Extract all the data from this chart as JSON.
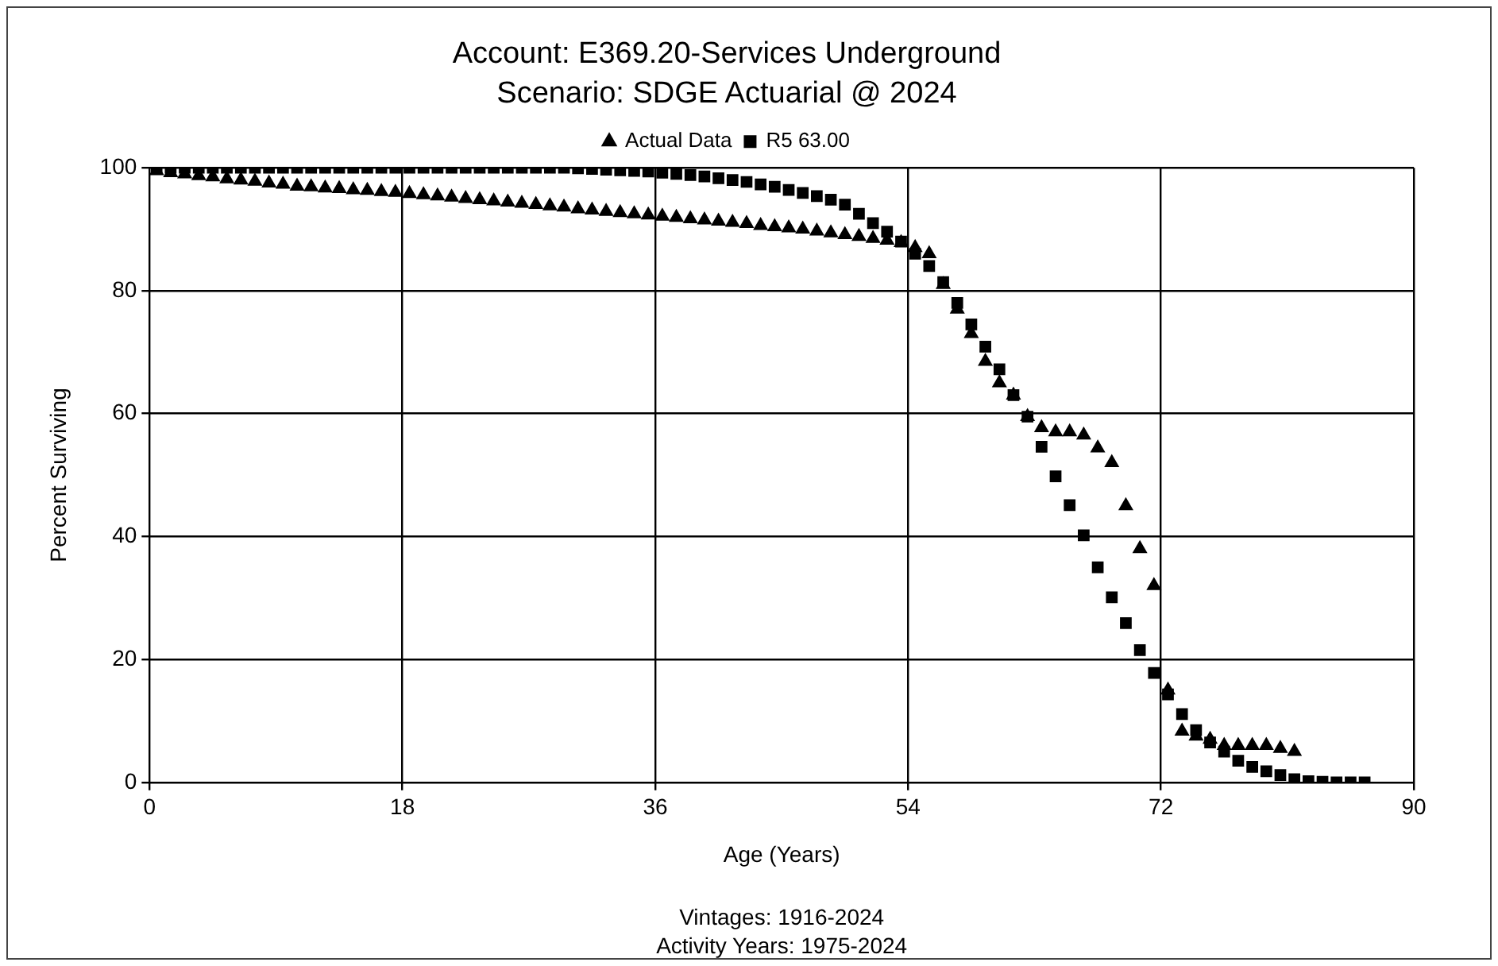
{
  "chart_data": {
    "type": "scatter",
    "title": "Account: E369.20-Services Underground",
    "subtitle": "Scenario: SDGE Actuarial @ 2024",
    "xlabel": "Age (Years)",
    "ylabel": "Percent Surviving",
    "annotations": [
      "Vintages: 1916-2024",
      "Activity Years: 1975-2024"
    ],
    "xlim": [
      0,
      90
    ],
    "xticks": [
      0,
      18,
      36,
      54,
      72,
      90
    ],
    "ylim": [
      0,
      100
    ],
    "yticks": [
      0,
      20,
      40,
      60,
      80,
      100
    ],
    "grid": true,
    "legend": "top",
    "series": [
      {
        "name": "Actual Data",
        "color": "#000000",
        "marker": "triangle",
        "x": [
          0.5,
          1.5,
          2.5,
          3.5,
          4.5,
          5.5,
          6.5,
          7.5,
          8.5,
          9.5,
          10.5,
          11.5,
          12.5,
          13.5,
          14.5,
          15.5,
          16.5,
          17.5,
          18.5,
          19.5,
          20.5,
          21.5,
          22.5,
          23.5,
          24.5,
          25.5,
          26.5,
          27.5,
          28.5,
          29.5,
          30.5,
          31.5,
          32.5,
          33.5,
          34.5,
          35.5,
          36.5,
          37.5,
          38.5,
          39.5,
          40.5,
          41.5,
          42.5,
          43.5,
          44.5,
          45.5,
          46.5,
          47.5,
          48.5,
          49.5,
          50.5,
          51.5,
          52.5,
          53.5,
          54.5,
          55.5,
          56.5,
          57.5,
          58.5,
          59.5,
          60.5,
          61.5,
          62.5,
          63.5,
          64.5,
          65.5,
          66.5,
          67.5,
          68.5,
          69.5,
          70.5,
          71.5,
          72.5,
          73.5,
          74.5,
          75.5,
          76.5,
          77.5,
          78.5,
          79.5,
          80.5,
          81.5
        ],
        "values": [
          99.5,
          99.2,
          99,
          98.7,
          98.5,
          98.2,
          98,
          97.8,
          97.5,
          97.3,
          97,
          96.9,
          96.7,
          96.6,
          96.4,
          96.3,
          96.1,
          96,
          95.8,
          95.6,
          95.4,
          95.2,
          95,
          94.8,
          94.6,
          94.4,
          94.2,
          94,
          93.8,
          93.6,
          93.3,
          93.1,
          92.9,
          92.7,
          92.5,
          92.3,
          92.1,
          91.9,
          91.7,
          91.5,
          91.3,
          91.1,
          90.9,
          90.6,
          90.4,
          90.2,
          90,
          89.7,
          89.4,
          89.1,
          88.8,
          88.5,
          88.2,
          87.8,
          87,
          86,
          81,
          77,
          73,
          68.5,
          65,
          63,
          59.5,
          57.7,
          57,
          57,
          56.5,
          54.4,
          52,
          45,
          38,
          32,
          15,
          8.3,
          7.5,
          7,
          6,
          6,
          6,
          6,
          5.5,
          5
        ]
      },
      {
        "name": "R5 63.00",
        "color": "#000000",
        "marker": "square",
        "x": [
          0.5,
          1.5,
          2.5,
          3.5,
          4.5,
          5.5,
          6.5,
          7.5,
          8.5,
          9.5,
          10.5,
          11.5,
          12.5,
          13.5,
          14.5,
          15.5,
          16.5,
          17.5,
          18.5,
          19.5,
          20.5,
          21.5,
          22.5,
          23.5,
          24.5,
          25.5,
          26.5,
          27.5,
          28.5,
          29.5,
          30.5,
          31.5,
          32.5,
          33.5,
          34.5,
          35.5,
          36.5,
          37.5,
          38.5,
          39.5,
          40.5,
          41.5,
          42.5,
          43.5,
          44.5,
          45.5,
          46.5,
          47.5,
          48.5,
          49.5,
          50.5,
          51.5,
          52.5,
          53.5,
          54.5,
          55.5,
          56.5,
          57.5,
          58.5,
          59.5,
          60.5,
          61.5,
          62.5,
          63.5,
          64.5,
          65.5,
          66.5,
          67.5,
          68.5,
          69.5,
          70.5,
          71.5,
          72.5,
          73.5,
          74.5,
          75.5,
          76.5,
          77.5,
          78.5,
          79.5,
          80.5,
          81.5,
          82.5,
          83.5,
          84.5,
          85.5,
          86.5
        ],
        "values": [
          100,
          100,
          100,
          100,
          100,
          100,
          100,
          100,
          100,
          100,
          100,
          100,
          100,
          100,
          100,
          100,
          100,
          100,
          100,
          100,
          100,
          100,
          100,
          100,
          100,
          100,
          100,
          100,
          100,
          100,
          99.9,
          99.8,
          99.7,
          99.6,
          99.5,
          99.4,
          99.2,
          99,
          98.8,
          98.6,
          98.3,
          98,
          97.7,
          97.3,
          96.9,
          96.4,
          95.9,
          95.4,
          94.8,
          94,
          92.5,
          91,
          89.6,
          88,
          86,
          84,
          81.4,
          78,
          74.5,
          70.9,
          67.2,
          63,
          59.5,
          54.6,
          49.8,
          45.1,
          40.2,
          35,
          30.1,
          25.9,
          21.5,
          17.8,
          14.3,
          11.1,
          8.5,
          6.5,
          5,
          3.5,
          2.5,
          1.8,
          1.2,
          0.5,
          0.2,
          0.1,
          0,
          0,
          0
        ]
      }
    ]
  }
}
